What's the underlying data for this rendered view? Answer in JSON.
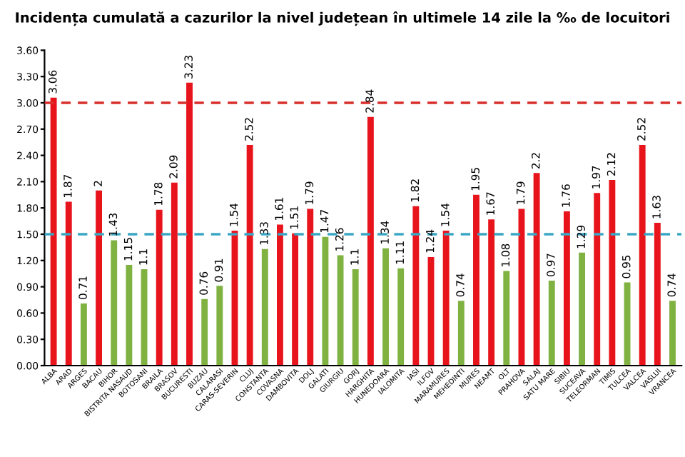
{
  "chart_data": {
    "type": "bar",
    "title": "Incidența cumulată a cazurilor la nivel județean în ultimele 14 zile la ‰ de locuitori",
    "categories": [
      "ALBA",
      "ARAD",
      "ARGES",
      "BACAU",
      "BIHOR",
      "BISTRITA NASAUD",
      "BOTOSANI",
      "BRAILA",
      "BRASOV",
      "BUCURESTI",
      "BUZAU",
      "CALARASI",
      "CARAS-SEVERIN",
      "CLUJ",
      "CONSTANTA",
      "COVASNA",
      "DAMBOVITA",
      "DOLJ",
      "GALATI",
      "GIURGIU",
      "GORJ",
      "HARGHITA",
      "HUNEDOARA",
      "IALOMITA",
      "IASI",
      "ILFOV",
      "MARAMURES",
      "MEHEDINTI",
      "MURES",
      "NEAMT",
      "OLT",
      "PRAHOVA",
      "SALAJ",
      "SATU MARE",
      "SIBIU",
      "SUCEAVA",
      "TELEORMAN",
      "TIMIS",
      "TULCEA",
      "VALCEA",
      "VASLUI",
      "VRANCEA"
    ],
    "values": [
      3.06,
      1.87,
      0.71,
      2,
      1.43,
      1.15,
      1.1,
      1.78,
      2.09,
      3.23,
      0.76,
      0.91,
      1.54,
      2.52,
      1.33,
      1.61,
      1.51,
      1.79,
      1.47,
      1.26,
      1.1,
      2.84,
      1.34,
      1.11,
      1.82,
      1.24,
      1.54,
      0.74,
      1.95,
      1.67,
      1.08,
      1.79,
      2.2,
      0.97,
      1.76,
      1.29,
      1.97,
      2.12,
      0.95,
      2.52,
      1.63,
      0.74
    ],
    "colors": [
      "#e8141c",
      "#e8141c",
      "#7fb241",
      "#e8141c",
      "#7fb241",
      "#7fb241",
      "#7fb241",
      "#e8141c",
      "#e8141c",
      "#e8141c",
      "#7fb241",
      "#7fb241",
      "#e8141c",
      "#e8141c",
      "#7fb241",
      "#e8141c",
      "#e8141c",
      "#e8141c",
      "#7fb241",
      "#7fb241",
      "#7fb241",
      "#e8141c",
      "#7fb241",
      "#7fb241",
      "#e8141c",
      "#e8141c",
      "#e8141c",
      "#7fb241",
      "#e8141c",
      "#e8141c",
      "#7fb241",
      "#e8141c",
      "#e8141c",
      "#7fb241",
      "#e8141c",
      "#7fb241",
      "#e8141c",
      "#e8141c",
      "#7fb241",
      "#e8141c",
      "#e8141c",
      "#7fb241"
    ],
    "data_labels": true,
    "ylim": [
      0,
      3.6
    ],
    "yticks": [
      {
        "value": 0,
        "label": "0.00"
      },
      {
        "value": 0.3,
        "label": "0.30"
      },
      {
        "value": 0.6,
        "label": "0.60"
      },
      {
        "value": 0.9,
        "label": "0.90"
      },
      {
        "value": 1.2,
        "label": "1.20"
      },
      {
        "value": 1.5,
        "label": "1.50"
      },
      {
        "value": 1.8,
        "label": "1.80"
      },
      {
        "value": 2.1,
        "label": "2.10"
      },
      {
        "value": 2.4,
        "label": "2.40"
      },
      {
        "value": 2.7,
        "label": "2.70"
      },
      {
        "value": 3.0,
        "label": "3.00"
      },
      {
        "value": 3.3,
        "label": "3.30"
      },
      {
        "value": 3.6,
        "label": "3.60"
      }
    ],
    "ref_lines": [
      {
        "axis": "y",
        "value": 3.0,
        "color": "#d9302c",
        "line_style": "dashed"
      },
      {
        "axis": "y",
        "value": 1.5,
        "color": "#3aa7c4",
        "line_style": "dashed"
      }
    ],
    "grid": false,
    "legend": false
  }
}
